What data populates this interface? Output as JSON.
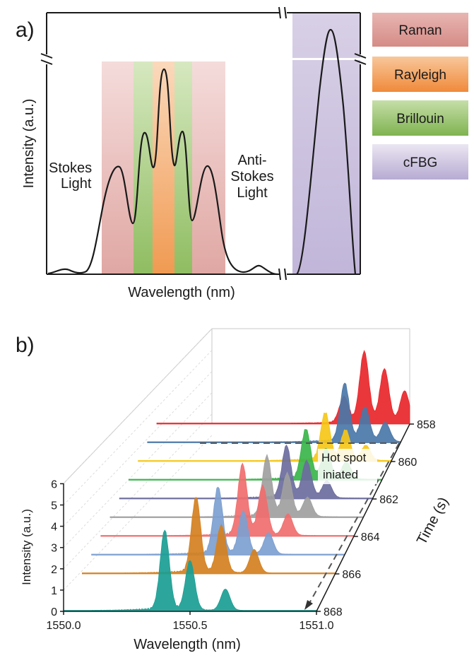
{
  "panel_a": {
    "label": "a)",
    "ylabel": "Intensity (a.u.)",
    "xlabel": "Wavelength (nm)",
    "annotations": {
      "stokes": [
        "Stokes",
        "Light"
      ],
      "anti_stokes": [
        "Anti-",
        "Stokes",
        "Light"
      ]
    },
    "legend": [
      {
        "label": "Raman",
        "color": "#d98c8c"
      },
      {
        "label": "Rayleigh",
        "color": "#f08a3c"
      },
      {
        "label": "Brillouin",
        "color": "#8cbf5a"
      },
      {
        "label": "cFBG",
        "color": "#b0a3cc"
      }
    ]
  },
  "panel_b": {
    "label": "b)",
    "ylabel": "Intensity (a.u.)",
    "xlabel": "Wavelength (nm)",
    "zlabel": "Time (s)",
    "annotation": [
      "Hot spot",
      "iniated"
    ]
  },
  "chart_data": [
    {
      "type": "line",
      "title": "",
      "xlabel": "Wavelength (nm)",
      "ylabel": "Intensity (a.u.)",
      "y_axis_break": true,
      "x_axis_break": true,
      "bands": [
        "Raman",
        "Brillouin",
        "Rayleigh",
        "Brillouin",
        "Raman",
        "cFBG"
      ],
      "peaks": [
        {
          "band": "Raman (Stokes)",
          "relative_intensity": 0.5
        },
        {
          "band": "Brillouin",
          "relative_intensity": 0.66
        },
        {
          "band": "Rayleigh",
          "relative_intensity": 0.97
        },
        {
          "band": "Brillouin",
          "relative_intensity": 0.66
        },
        {
          "band": "Raman (Anti-Stokes)",
          "relative_intensity": 0.5
        },
        {
          "band": "cFBG",
          "relative_intensity": 1.0
        }
      ]
    },
    {
      "type": "area",
      "title": "",
      "xlabel": "Wavelength (nm)",
      "ylabel": "Intensity (a.u.)",
      "zlabel": "Time (s)",
      "xlim": [
        1550.0,
        1551.0
      ],
      "ylim": [
        0,
        6
      ],
      "x_ticks": [
        "1550.0",
        "1550.5",
        "1551.0"
      ],
      "y_ticks": [
        "0",
        "1",
        "2",
        "3",
        "4",
        "5",
        "6"
      ],
      "time_ticks": [
        "858",
        "860",
        "862",
        "864",
        "866",
        "868"
      ],
      "series": [
        {
          "time": 858,
          "color": "#e8262a",
          "peaks": [
            [
              1550.82,
              3.3
            ],
            [
              1550.9,
              2.5
            ],
            [
              1550.98,
              1.5
            ],
            [
              1550.74,
              1.2
            ]
          ]
        },
        {
          "time": 859,
          "color": "#4a77a8",
          "peaks": [
            [
              1550.78,
              2.7
            ],
            [
              1550.86,
              1.6
            ],
            [
              1550.94,
              0.9
            ]
          ]
        },
        {
          "time": 860,
          "color": "#f5c718",
          "peaks": [
            [
              1550.74,
              2.2
            ],
            [
              1550.82,
              1.4
            ],
            [
              1550.9,
              0.7
            ]
          ]
        },
        {
          "time": 861,
          "color": "#39b54a",
          "peaks": [
            [
              1550.7,
              2.3
            ],
            [
              1550.78,
              1.4
            ],
            [
              1550.86,
              0.8
            ]
          ]
        },
        {
          "time": 862,
          "color": "#6c6c9e",
          "peaks": [
            [
              1550.66,
              2.4
            ],
            [
              1550.74,
              1.7
            ],
            [
              1550.82,
              0.8
            ]
          ]
        },
        {
          "time": 863,
          "color": "#a0a0a0",
          "peaks": [
            [
              1550.62,
              2.8
            ],
            [
              1550.7,
              2.0
            ],
            [
              1550.78,
              0.9
            ]
          ]
        },
        {
          "time": 864,
          "color": "#f06e6e",
          "peaks": [
            [
              1550.56,
              3.3
            ],
            [
              1550.64,
              2.3
            ],
            [
              1550.74,
              1.0
            ]
          ]
        },
        {
          "time": 865,
          "color": "#7d9fd0",
          "peaks": [
            [
              1550.5,
              3.1
            ],
            [
              1550.6,
              2.0
            ],
            [
              1550.7,
              1.0
            ]
          ]
        },
        {
          "time": 866,
          "color": "#d4801f",
          "peaks": [
            [
              1550.45,
              3.5
            ],
            [
              1550.55,
              2.2
            ],
            [
              1550.68,
              1.1
            ]
          ]
        },
        {
          "time": 868,
          "color": "#1a9e94",
          "peaks": [
            [
              1550.4,
              3.7
            ],
            [
              1550.5,
              2.3
            ],
            [
              1550.64,
              1.0
            ]
          ]
        }
      ]
    }
  ]
}
